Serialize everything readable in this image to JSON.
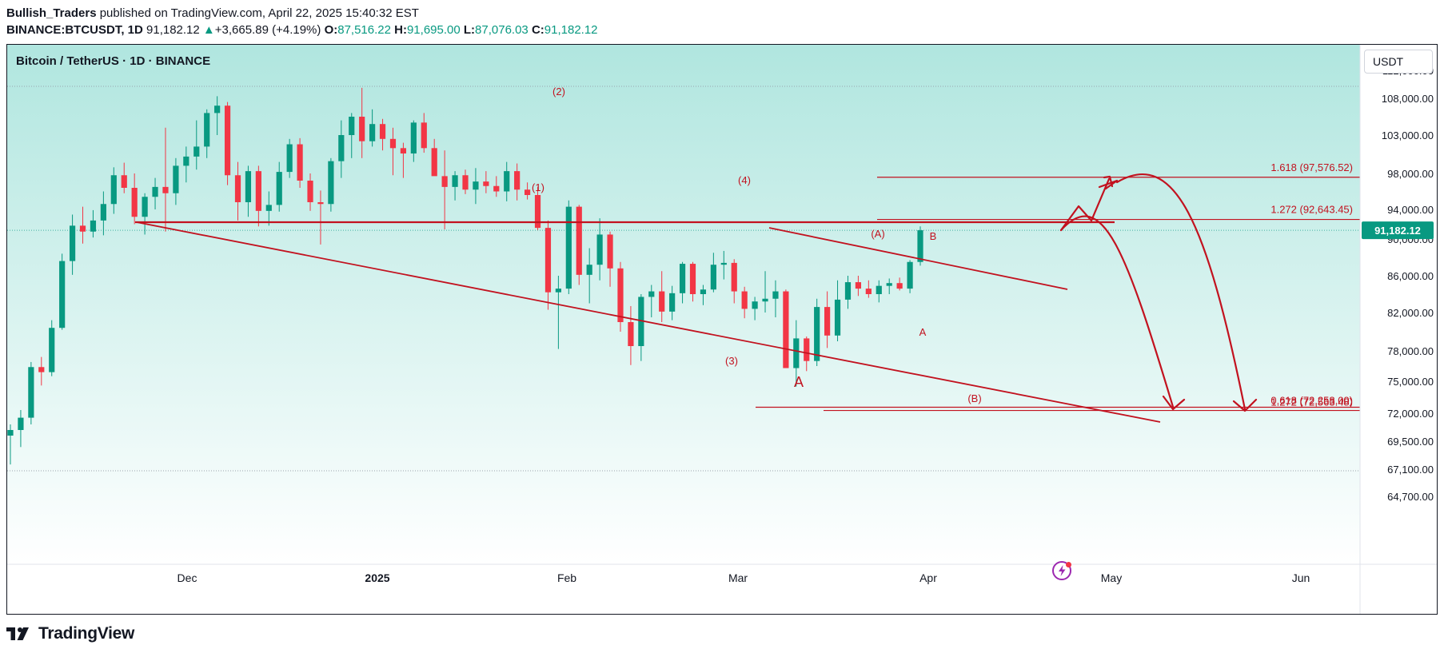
{
  "header": {
    "author": "Bullish_Traders",
    "published_text": "published on TradingView.com, April 22, 2025 15:40:32 EST",
    "symbol": "BINANCE:BTCUSDT, 1D",
    "last": "91,182.12",
    "arrow": "▲",
    "change": "+3,665.89 (+4.19%)",
    "o_label": "O:",
    "o": "87,516.22",
    "h_label": "H:",
    "h": "91,695.00",
    "l_label": "L:",
    "l": "87,076.03",
    "c_label": "C:",
    "c": "91,182.12"
  },
  "chart_title": "Bitcoin / TetherUS · 1D · BINANCE",
  "currency_button": "USDT",
  "brand": "TradingView",
  "colors": {
    "bull": "#089981",
    "bear": "#f23645",
    "annotation": "#c2121f",
    "bg_top": "#b0e6df",
    "bg_bottom": "#ffffff",
    "price_tag": "#089981"
  },
  "icons": {
    "flash": "lightning-icon",
    "logo": "tradingview-logo-icon"
  },
  "chart_data": {
    "type": "candlestick",
    "x_axis_labels": [
      "Dec",
      "2025",
      "Feb",
      "Mar",
      "Apr",
      "May",
      "Jun"
    ],
    "y_axis_labels": [
      "112,000.00",
      "108,000.00",
      "103,000.00",
      "98,000.00",
      "94,000.00",
      "90,000.00",
      "86,000.00",
      "82,000.00",
      "78,000.00",
      "75,000.00",
      "72,000.00",
      "69,500.00",
      "67,100.00",
      "64,700.00"
    ],
    "y_axis_values": [
      112000,
      108000,
      103000,
      98000,
      94000,
      90000,
      86000,
      82000,
      78000,
      75000,
      72000,
      69500,
      67100,
      64700
    ],
    "last_price_label": "91,182.12",
    "last_price": 91182.12,
    "fib_labels": [
      {
        "text": "1.618 (97,576.52)",
        "value": 97576.52
      },
      {
        "text": "1.272 (92,643.45)",
        "value": 92643.45
      },
      {
        "text": "1.272 (72,563.48)",
        "value": 72563.48
      },
      {
        "text": "0.618 (72,258.00)",
        "value": 72258.0
      }
    ],
    "wave_labels": [
      "(1)",
      "(2)",
      "(3)",
      "(4)",
      "A",
      "(A)",
      "B",
      "A",
      "(B)"
    ],
    "support_resistance_level": 92000,
    "candles_ohlc_approx": [
      [
        70000,
        71000,
        67500,
        70500
      ],
      [
        70500,
        72300,
        69000,
        71600
      ],
      [
        71600,
        76900,
        71000,
        76400
      ],
      [
        76400,
        77400,
        74600,
        75900
      ],
      [
        75900,
        81200,
        75500,
        80400
      ],
      [
        80400,
        88400,
        80200,
        87600
      ],
      [
        87600,
        93300,
        86100,
        91800
      ],
      [
        91800,
        94300,
        89500,
        91000
      ],
      [
        91000,
        93900,
        90200,
        92500
      ],
      [
        92500,
        96000,
        90500,
        94600
      ],
      [
        94600,
        98800,
        93400,
        97800
      ],
      [
        97800,
        99400,
        95800,
        96400
      ],
      [
        96400,
        98000,
        92000,
        93000
      ],
      [
        93000,
        95800,
        90600,
        95400
      ],
      [
        95400,
        97500,
        94000,
        96500
      ],
      [
        96500,
        104000,
        91000,
        95800
      ],
      [
        95800,
        100000,
        94500,
        99000
      ],
      [
        99000,
        101500,
        97000,
        100200
      ],
      [
        100200,
        105000,
        98500,
        101500
      ],
      [
        101500,
        106500,
        100000,
        106000
      ],
      [
        106000,
        108300,
        103000,
        107000
      ],
      [
        107000,
        107500,
        96700,
        97800
      ],
      [
        97800,
        99500,
        92500,
        94800
      ],
      [
        94800,
        99000,
        93000,
        98300
      ],
      [
        98300,
        99000,
        91700,
        93800
      ],
      [
        93800,
        96000,
        91800,
        94500
      ],
      [
        94500,
        99500,
        93700,
        98200
      ],
      [
        98200,
        102500,
        97500,
        101800
      ],
      [
        101800,
        102600,
        96400,
        97200
      ],
      [
        97200,
        98000,
        93800,
        94800
      ],
      [
        94800,
        96100,
        89400,
        94600
      ],
      [
        94600,
        100000,
        93700,
        99600
      ],
      [
        99600,
        105000,
        97500,
        103000
      ],
      [
        103000,
        106000,
        100000,
        105500
      ],
      [
        105500,
        109500,
        100000,
        102200
      ],
      [
        102200,
        106500,
        101500,
        104500
      ],
      [
        104500,
        105200,
        101000,
        102500
      ],
      [
        102500,
        104000,
        97800,
        101300
      ],
      [
        101300,
        102000,
        97500,
        100600
      ],
      [
        100600,
        105000,
        99500,
        104700
      ],
      [
        104700,
        106000,
        100700,
        101300
      ],
      [
        101300,
        102500,
        97900,
        97700
      ],
      [
        97700,
        101000,
        91300,
        96500
      ],
      [
        96500,
        98300,
        95000,
        97800
      ],
      [
        97800,
        98500,
        95700,
        96200
      ],
      [
        96200,
        98700,
        94600,
        97100
      ],
      [
        97100,
        98300,
        95800,
        96600
      ],
      [
        96600,
        97700,
        95400,
        96000
      ],
      [
        96000,
        99500,
        94900,
        98300
      ],
      [
        98300,
        99300,
        95000,
        96200
      ],
      [
        96200,
        97000,
        95100,
        95600
      ],
      [
        95600,
        96500,
        91200,
        91500
      ],
      [
        91500,
        92500,
        82300,
        84200
      ],
      [
        84200,
        86000,
        78200,
        84600
      ],
      [
        84600,
        95000,
        84000,
        94300
      ],
      [
        94300,
        94500,
        85000,
        86100
      ],
      [
        86100,
        89000,
        83000,
        87200
      ],
      [
        87200,
        92800,
        85500,
        90600
      ],
      [
        90600,
        91000,
        84800,
        86800
      ],
      [
        86800,
        87500,
        80000,
        81000
      ],
      [
        81000,
        82700,
        76600,
        78500
      ],
      [
        78500,
        84000,
        77000,
        83700
      ],
      [
        83700,
        85000,
        81500,
        84300
      ],
      [
        84300,
        86500,
        81000,
        82100
      ],
      [
        82100,
        84900,
        81200,
        84100
      ],
      [
        84100,
        87500,
        83000,
        87300
      ],
      [
        87300,
        87500,
        83200,
        84000
      ],
      [
        84000,
        85000,
        82800,
        84500
      ],
      [
        84500,
        88500,
        84200,
        87200
      ],
      [
        87200,
        88700,
        85600,
        87400
      ],
      [
        87400,
        87800,
        83000,
        84300
      ],
      [
        84300,
        84800,
        81400,
        82400
      ],
      [
        82400,
        83700,
        81200,
        83200
      ],
      [
        83200,
        86500,
        82000,
        83500
      ],
      [
        83500,
        85500,
        81500,
        84300
      ],
      [
        84300,
        84500,
        78000,
        76300
      ],
      [
        76300,
        81200,
        74500,
        79300
      ],
      [
        79300,
        79500,
        76000,
        77000
      ],
      [
        77000,
        83500,
        76500,
        82600
      ],
      [
        82600,
        84300,
        78300,
        79600
      ],
      [
        79600,
        85500,
        79000,
        83400
      ],
      [
        83400,
        86000,
        82400,
        85300
      ],
      [
        85300,
        86000,
        83800,
        84600
      ],
      [
        84600,
        85500,
        83600,
        84000
      ],
      [
        84000,
        85500,
        83100,
        84900
      ],
      [
        84900,
        85700,
        84000,
        85200
      ],
      [
        85200,
        85800,
        84400,
        84600
      ],
      [
        84600,
        87700,
        84100,
        87500
      ],
      [
        87500,
        91700,
        87100,
        91182
      ]
    ]
  }
}
